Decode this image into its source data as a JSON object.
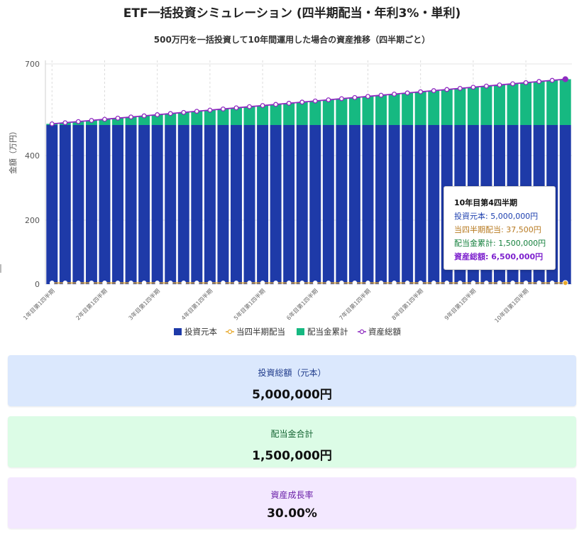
{
  "chart_data": {
    "type": "bar",
    "title": "ETF一括投資シミュレーション (四半期配当・年利3%・単利)",
    "subtitle": "500万円を一括投資して10年間運用した場合の資産推移（四半期ごと）",
    "ylabel": "金額（万円）",
    "ylim": [
      0,
      700
    ],
    "yticks": [
      0,
      200,
      400,
      700
    ],
    "ytick_labels": [
      "0",
      "200",
      "400",
      "700"
    ],
    "x_tick_labels": [
      "1年目第1四半期",
      "2年目第1四半期",
      "3年目第1四半期",
      "4年目第1四半期",
      "5年目第1四半期",
      "6年目第1四半期",
      "7年目第1四半期",
      "8年目第1四半期",
      "9年目第1四半期",
      "10年目第1四半期"
    ],
    "num_periods": 40,
    "legend": [
      "投資元本",
      "当四半期配当",
      "配当金累計",
      "資産総額"
    ],
    "legend_position": "bottom",
    "series": [
      {
        "name": "投資元本",
        "kind": "bar",
        "values": [
          500,
          500,
          500,
          500,
          500,
          500,
          500,
          500,
          500,
          500,
          500,
          500,
          500,
          500,
          500,
          500,
          500,
          500,
          500,
          500,
          500,
          500,
          500,
          500,
          500,
          500,
          500,
          500,
          500,
          500,
          500,
          500,
          500,
          500,
          500,
          500,
          500,
          500,
          500,
          500
        ]
      },
      {
        "name": "配当金累計",
        "kind": "bar",
        "values": [
          3.75,
          7.5,
          11.25,
          15,
          18.75,
          22.5,
          26.25,
          30,
          33.75,
          37.5,
          41.25,
          45,
          48.75,
          52.5,
          56.25,
          60,
          63.75,
          67.5,
          71.25,
          75,
          78.75,
          82.5,
          86.25,
          90,
          93.75,
          97.5,
          101.25,
          105,
          108.75,
          112.5,
          116.25,
          120,
          123.75,
          127.5,
          131.25,
          135,
          138.75,
          142.5,
          146.25,
          150
        ]
      },
      {
        "name": "当四半期配当",
        "kind": "line",
        "values": [
          3.75,
          3.75,
          3.75,
          3.75,
          3.75,
          3.75,
          3.75,
          3.75,
          3.75,
          3.75,
          3.75,
          3.75,
          3.75,
          3.75,
          3.75,
          3.75,
          3.75,
          3.75,
          3.75,
          3.75,
          3.75,
          3.75,
          3.75,
          3.75,
          3.75,
          3.75,
          3.75,
          3.75,
          3.75,
          3.75,
          3.75,
          3.75,
          3.75,
          3.75,
          3.75,
          3.75,
          3.75,
          3.75,
          3.75,
          3.75
        ]
      },
      {
        "name": "資産総額",
        "kind": "line",
        "values": [
          503.75,
          507.5,
          511.25,
          515,
          518.75,
          522.5,
          526.25,
          530,
          533.75,
          537.5,
          541.25,
          545,
          548.75,
          552.5,
          556.25,
          560,
          563.75,
          567.5,
          571.25,
          575,
          578.75,
          582.5,
          586.25,
          590,
          593.75,
          597.5,
          601.25,
          605,
          608.75,
          612.5,
          616.25,
          620,
          623.75,
          627.5,
          631.25,
          635,
          638.75,
          642.5,
          646.25,
          650
        ]
      }
    ],
    "colors": {
      "principal": "#1e3aa8",
      "quarterly": "#e8a92b",
      "cumulative": "#16b981",
      "total": "#8e2bc0"
    }
  },
  "tooltip": {
    "title": "10年目第4四半期",
    "principal": "投資元本: 5,000,000円",
    "quarterly": "当四半期配当: 37,500円",
    "cumulative": "配当金累計: 1,500,000円",
    "total": "資産総額: 6,500,000円"
  },
  "cards": {
    "total": {
      "label": "投資総額（元本）",
      "value": "5,000,000円"
    },
    "dividends": {
      "label": "配当金合計",
      "value": "1,500,000円"
    },
    "growth": {
      "label": "資産成長率",
      "value": "30.00%"
    }
  }
}
